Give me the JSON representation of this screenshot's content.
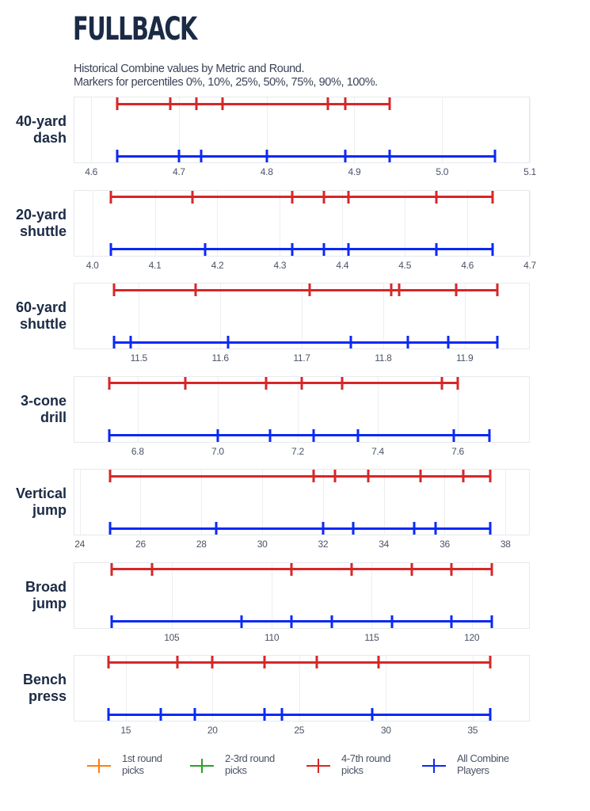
{
  "header": {
    "title": "FULLBACK",
    "subtitle_line1": "Historical Combine values by Metric and Round.",
    "subtitle_line2": "Markers for percentiles 0%, 10%, 25%, 50%, 75%, 90%, 100%."
  },
  "colors": {
    "round1": "#ff7f0e",
    "round2_3": "#2ca02c",
    "round4_7": "#d62728",
    "all": "#0a29f5",
    "title": "#1b2a45"
  },
  "legend": [
    {
      "label": "1st round\npicks",
      "color": "#ff7f0e"
    },
    {
      "label": "2-3rd round\npicks",
      "color": "#2ca02c"
    },
    {
      "label": "4-7th round\npicks",
      "color": "#d62728"
    },
    {
      "label": "All Combine\nPlayers",
      "color": "#0a29f5"
    }
  ],
  "chart_data": {
    "type": "percentile_range",
    "title": "FULLBACK",
    "subtitle": "Historical Combine values by Metric and Round. Markers for percentiles 0%, 10%, 25%, 50%, 75%, 90%, 100%.",
    "percentiles": [
      0,
      10,
      25,
      50,
      75,
      90,
      100
    ],
    "legend": [
      "1st round picks",
      "2-3rd round picks",
      "4-7th round picks",
      "All Combine Players"
    ],
    "legend_position": "bottom",
    "grid": true,
    "panels": [
      {
        "metric": "40-yard\ndash",
        "xlim": [
          4.58,
          5.1
        ],
        "ticks": [
          4.6,
          4.7,
          4.8,
          4.9,
          5.0,
          5.1
        ],
        "tick_labels": [
          "4.6",
          "4.7",
          "4.8",
          "4.9",
          "5.0",
          "5.1"
        ],
        "series": [
          {
            "name": "4-7th round picks",
            "values": [
              4.63,
              4.69,
              4.72,
              4.75,
              4.87,
              4.89,
              4.94
            ]
          },
          {
            "name": "All Combine Players",
            "values": [
              4.63,
              4.7,
              4.725,
              4.8,
              4.89,
              4.94,
              5.06
            ]
          }
        ]
      },
      {
        "metric": "20-yard\nshuttle",
        "xlim": [
          3.97,
          4.7
        ],
        "ticks": [
          4.0,
          4.1,
          4.2,
          4.3,
          4.4,
          4.5,
          4.6,
          4.7
        ],
        "tick_labels": [
          "4.0",
          "4.1",
          "4.2",
          "4.3",
          "4.4",
          "4.5",
          "4.6",
          "4.7"
        ],
        "series": [
          {
            "name": "4-7th round picks",
            "values": [
              4.03,
              4.16,
              4.32,
              4.37,
              4.41,
              4.55,
              4.64
            ]
          },
          {
            "name": "All Combine Players",
            "values": [
              4.03,
              4.18,
              4.32,
              4.37,
              4.41,
              4.55,
              4.64
            ]
          }
        ]
      },
      {
        "metric": "60-yard\nshuttle",
        "xlim": [
          11.42,
          11.98
        ],
        "ticks": [
          11.5,
          11.6,
          11.7,
          11.8,
          11.9
        ],
        "tick_labels": [
          "11.5",
          "11.6",
          "11.7",
          "11.8",
          "11.9"
        ],
        "series": [
          {
            "name": "4-7th round picks",
            "values": [
              11.47,
              11.57,
              11.71,
              11.81,
              11.82,
              11.89,
              11.94
            ]
          },
          {
            "name": "All Combine Players",
            "values": [
              11.47,
              11.49,
              11.61,
              11.76,
              11.83,
              11.88,
              11.94
            ]
          }
        ]
      },
      {
        "metric": "3-cone\ndrill",
        "xlim": [
          6.64,
          7.78
        ],
        "ticks": [
          6.8,
          7.0,
          7.2,
          7.4,
          7.6
        ],
        "tick_labels": [
          "6.8",
          "7.0",
          "7.2",
          "7.4",
          "7.6"
        ],
        "series": [
          {
            "name": "4-7th round picks",
            "values": [
              6.73,
              6.92,
              7.12,
              7.21,
              7.31,
              7.56,
              7.6
            ]
          },
          {
            "name": "All Combine Players",
            "values": [
              6.73,
              7.0,
              7.13,
              7.24,
              7.35,
              7.59,
              7.68
            ]
          }
        ]
      },
      {
        "metric": "Vertical\njump",
        "xlim": [
          23.8,
          38.8
        ],
        "ticks": [
          24,
          26,
          28,
          30,
          32,
          34,
          36,
          38
        ],
        "tick_labels": [
          "24",
          "26",
          "28",
          "30",
          "32",
          "34",
          "36",
          "38"
        ],
        "series": [
          {
            "name": "4-7th round picks",
            "values": [
              25,
              31.7,
              32.4,
              33.5,
              35.2,
              36.6,
              37.5
            ]
          },
          {
            "name": "All Combine Players",
            "values": [
              25,
              28.5,
              32,
              33,
              35,
              35.7,
              37.5
            ]
          }
        ]
      },
      {
        "metric": "Broad\njump",
        "xlim": [
          100.1,
          122.9
        ],
        "ticks": [
          105,
          110,
          115,
          120
        ],
        "tick_labels": [
          "105",
          "110",
          "115",
          "120"
        ],
        "series": [
          {
            "name": "4-7th round picks",
            "values": [
              102,
              104,
              111,
              114,
              117,
              119,
              121
            ]
          },
          {
            "name": "All Combine Players",
            "values": [
              102,
              108.5,
              111,
              113,
              116,
              119,
              121
            ]
          }
        ]
      },
      {
        "metric": "Bench\npress",
        "xlim": [
          12.0,
          38.3
        ],
        "ticks": [
          15,
          20,
          25,
          30,
          35
        ],
        "tick_labels": [
          "15",
          "20",
          "25",
          "30",
          "35"
        ],
        "series": [
          {
            "name": "4-7th round picks",
            "values": [
              14,
              18,
              20,
              23,
              26,
              29.6,
              36
            ]
          },
          {
            "name": "All Combine Players",
            "values": [
              14,
              17,
              19,
              23,
              24,
              29.2,
              36
            ]
          }
        ]
      }
    ]
  }
}
